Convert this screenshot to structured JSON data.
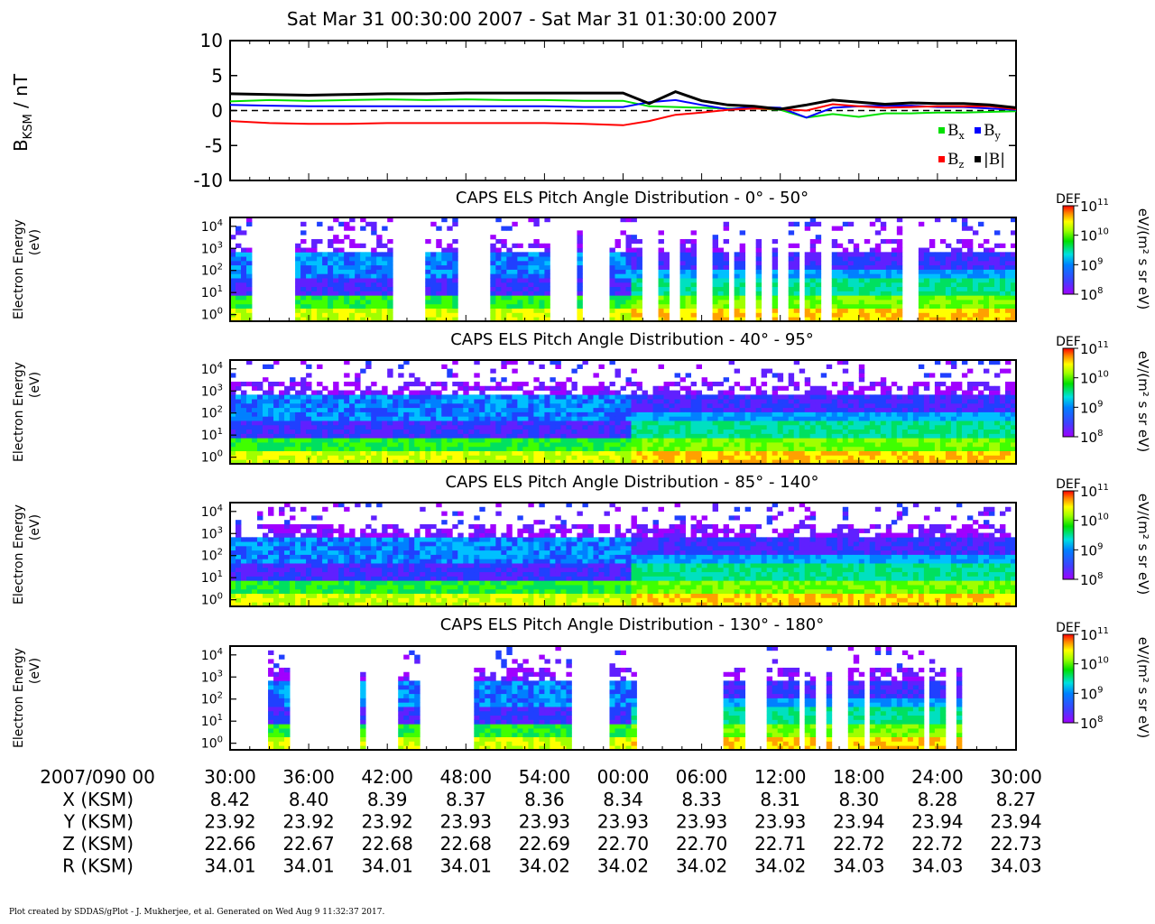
{
  "title": "Sat Mar 31 00:30:00 2007 - Sat Mar 31 01:30:00 2007",
  "footer": "Plot created by SDDAS/gPlot - J. Mukherjee, et al.  Generated on Wed Aug 9 11:32:37 2017.",
  "colors": {
    "bx": "#00e000",
    "by": "#0000ff",
    "bz": "#ff0000",
    "bmag": "#000000"
  },
  "chart_data": [
    {
      "type": "line",
      "ylabel_main": "B",
      "ylabel_sub": "KSM",
      "ylabel_unit": " / nT",
      "ylim": [
        -10,
        10
      ],
      "yticks": [
        "10",
        "5",
        "0",
        "-5",
        "-10"
      ],
      "zero_line": "dashed",
      "x_minutes": [
        0,
        3,
        6,
        9,
        12,
        15,
        18,
        21,
        24,
        27,
        30,
        32,
        34,
        36,
        38,
        40,
        42,
        44,
        46,
        48,
        50,
        52,
        54,
        56,
        58,
        60
      ],
      "legend": {
        "placement": "lower-right",
        "labels": [
          {
            "main": "B",
            "sub": "x",
            "color": "#00e000"
          },
          {
            "main": "B",
            "sub": "y",
            "color": "#0000ff"
          },
          {
            "main": "B",
            "sub": "z",
            "color": "#ff0000"
          },
          {
            "main": "|B|",
            "sub": "",
            "color": "#000000"
          }
        ]
      },
      "series": [
        {
          "key": "bx",
          "color": "#00e000",
          "values": [
            1.3,
            1.5,
            1.4,
            1.5,
            1.6,
            1.5,
            1.6,
            1.5,
            1.5,
            1.4,
            1.4,
            0.6,
            0.5,
            0.4,
            0.3,
            0.3,
            0.1,
            -1.0,
            -0.5,
            -0.9,
            -0.4,
            -0.4,
            -0.3,
            -0.3,
            -0.2,
            -0.1
          ]
        },
        {
          "key": "by",
          "color": "#0000ff",
          "values": [
            0.8,
            0.7,
            0.6,
            0.6,
            0.6,
            0.6,
            0.6,
            0.6,
            0.6,
            0.5,
            0.5,
            1.2,
            1.5,
            0.8,
            0.2,
            0.5,
            0.4,
            -1.0,
            0.4,
            0.6,
            0.7,
            0.7,
            0.5,
            0.5,
            0.3,
            0.1
          ]
        },
        {
          "key": "bz",
          "color": "#ff0000",
          "values": [
            -1.5,
            -1.8,
            -1.9,
            -1.9,
            -1.8,
            -1.8,
            -1.8,
            -1.8,
            -1.8,
            -1.9,
            -2.1,
            -1.5,
            -0.6,
            -0.3,
            0.1,
            0.3,
            0.2,
            0.0,
            0.9,
            0.6,
            0.4,
            0.5,
            0.6,
            0.6,
            0.6,
            0.2
          ]
        },
        {
          "key": "bmag",
          "color": "#000000",
          "values": [
            2.4,
            2.3,
            2.2,
            2.3,
            2.4,
            2.4,
            2.5,
            2.5,
            2.5,
            2.5,
            2.5,
            1.0,
            2.7,
            1.4,
            0.8,
            0.6,
            0.2,
            0.8,
            1.5,
            1.2,
            0.9,
            1.1,
            1.0,
            1.0,
            0.8,
            0.4
          ]
        }
      ]
    },
    {
      "type": "heatmap",
      "title": "CAPS ELS Pitch Angle Distribution - 0° - 50°",
      "ylabel": [
        "Electron Energy",
        "(eV)"
      ],
      "yscale": "log",
      "yticks": [
        "4",
        "3",
        "2",
        "1",
        "0"
      ],
      "ylim_log10": [
        -0.3,
        4.4
      ],
      "gaps_minutes": [
        [
          1.5,
          5.0
        ],
        [
          12.5,
          15.0
        ],
        [
          17.5,
          20.0
        ],
        [
          24.5,
          26.5
        ],
        [
          27.0,
          29.0
        ],
        [
          31.5,
          32.5
        ],
        [
          33.5,
          34.5
        ],
        [
          35.5,
          37.0
        ],
        [
          38.0,
          38.5
        ],
        [
          39.5,
          40.0
        ],
        [
          40.5,
          41.3
        ],
        [
          42.0,
          42.5
        ],
        [
          43.5,
          44.0
        ],
        [
          45.0,
          45.8
        ],
        [
          51.5,
          52.5
        ]
      ],
      "colorbar": {
        "label": "DEF",
        "unit": "eV/(m² s sr eV)",
        "ticks": [
          "11",
          "10",
          "9",
          "8"
        ]
      }
    },
    {
      "type": "heatmap",
      "title": "CAPS ELS Pitch Angle Distribution - 40° - 95°",
      "ylabel": [
        "Electron Energy",
        "(eV)"
      ],
      "yscale": "log",
      "yticks": [
        "4",
        "3",
        "2",
        "1",
        "0"
      ],
      "ylim_log10": [
        -0.3,
        4.4
      ],
      "gaps_minutes": [],
      "colorbar": {
        "label": "DEF",
        "unit": "eV/(m² s sr eV)",
        "ticks": [
          "11",
          "10",
          "9",
          "8"
        ]
      }
    },
    {
      "type": "heatmap",
      "title": "CAPS ELS Pitch Angle Distribution - 85° - 140°",
      "ylabel": [
        "Electron Energy",
        "(eV)"
      ],
      "yscale": "log",
      "yticks": [
        "4",
        "3",
        "2",
        "1",
        "0"
      ],
      "ylim_log10": [
        -0.3,
        4.4
      ],
      "gaps_minutes": [],
      "colorbar": {
        "label": "DEF",
        "unit": "eV/(m² s sr eV)",
        "ticks": [
          "11",
          "10",
          "9",
          "8"
        ]
      }
    },
    {
      "type": "heatmap",
      "title": "CAPS ELS Pitch Angle Distribution - 130° - 180°",
      "ylabel": [
        "Electron Energy",
        "(eV)"
      ],
      "yscale": "log",
      "yticks": [
        "4",
        "3",
        "2",
        "1",
        "0"
      ],
      "ylim_log10": [
        -0.3,
        4.4
      ],
      "gaps_minutes": [
        [
          0.0,
          2.8
        ],
        [
          4.5,
          10.0
        ],
        [
          10.5,
          13.0
        ],
        [
          14.5,
          18.5
        ],
        [
          26.0,
          29.0
        ],
        [
          31.0,
          37.5
        ],
        [
          39.5,
          41.0
        ],
        [
          43.5,
          44.0
        ],
        [
          44.5,
          45.5
        ],
        [
          46.0,
          47.0
        ],
        [
          48.5,
          49.0
        ],
        [
          53.0,
          53.5
        ],
        [
          54.5,
          55.5
        ],
        [
          56.0,
          60.0
        ]
      ],
      "colorbar": {
        "label": "DEF",
        "unit": "eV/(m² s sr eV)",
        "ticks": [
          "11",
          "10",
          "9",
          "8"
        ]
      }
    }
  ],
  "xaxis": {
    "date_label": "2007/090 00",
    "ticks": [
      "30:00",
      "36:00",
      "42:00",
      "48:00",
      "54:00",
      "00:00",
      "06:00",
      "12:00",
      "18:00",
      "24:00",
      "30:00"
    ],
    "rows": [
      {
        "label": "X (KSM)",
        "values": [
          "8.42",
          "8.40",
          "8.39",
          "8.37",
          "8.36",
          "8.34",
          "8.33",
          "8.31",
          "8.30",
          "8.28",
          "8.27"
        ]
      },
      {
        "label": "Y (KSM)",
        "values": [
          "23.92",
          "23.92",
          "23.92",
          "23.93",
          "23.93",
          "23.93",
          "23.93",
          "23.93",
          "23.94",
          "23.94",
          "23.94"
        ]
      },
      {
        "label": "Z (KSM)",
        "values": [
          "22.66",
          "22.67",
          "22.68",
          "22.68",
          "22.69",
          "22.70",
          "22.70",
          "22.71",
          "22.72",
          "22.72",
          "22.73"
        ]
      },
      {
        "label": "R (KSM)",
        "values": [
          "34.01",
          "34.01",
          "34.01",
          "34.01",
          "34.02",
          "34.02",
          "34.02",
          "34.02",
          "34.03",
          "34.03",
          "34.03"
        ]
      }
    ]
  }
}
